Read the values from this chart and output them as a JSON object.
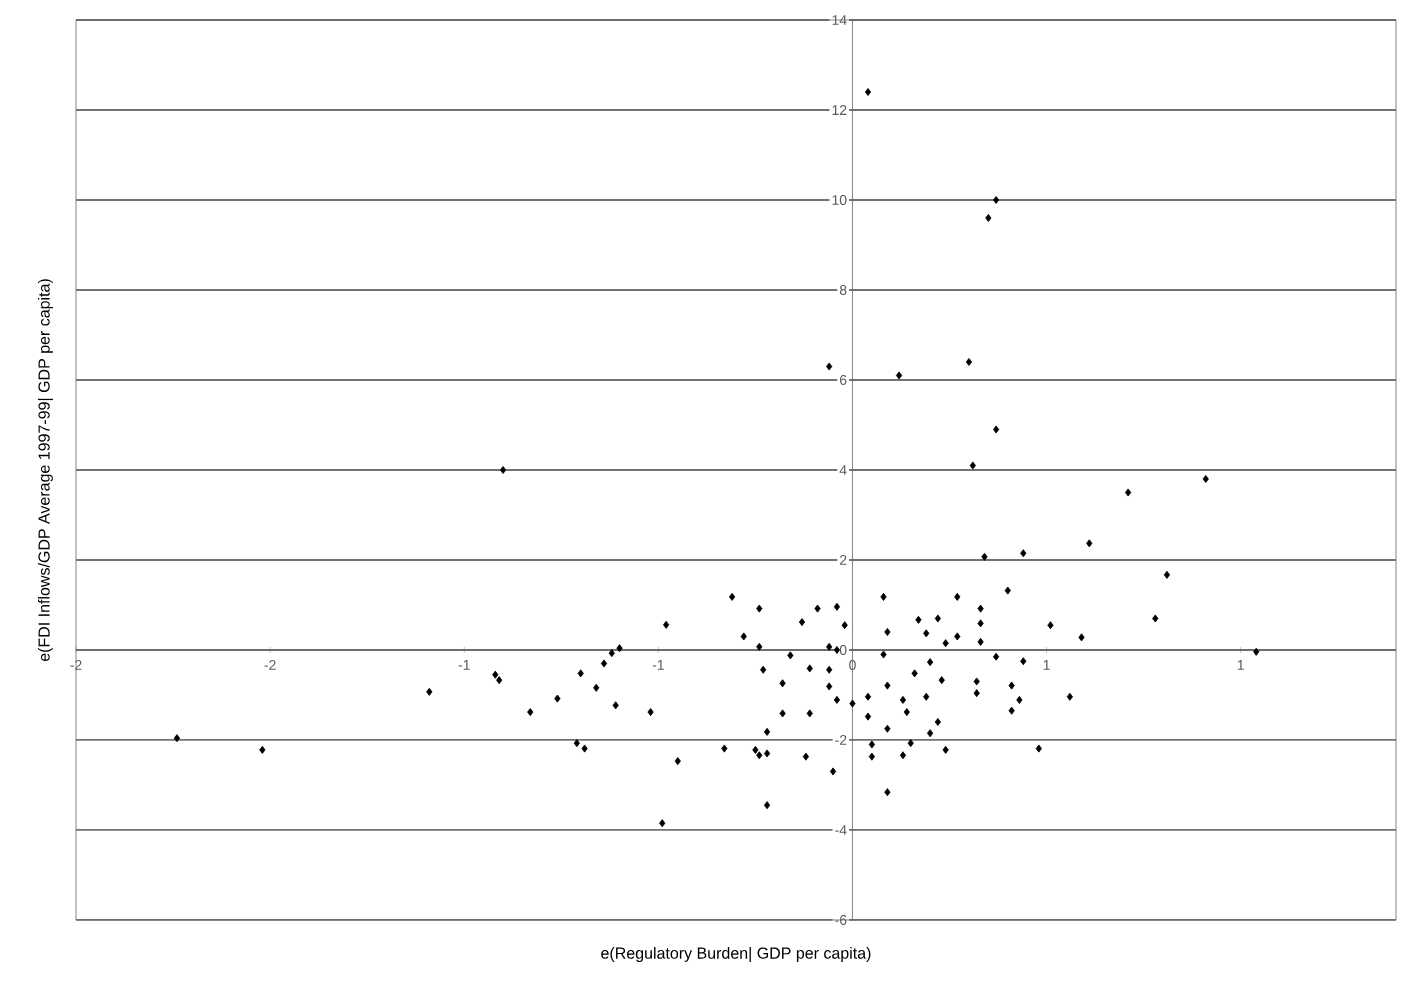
{
  "chart_data": {
    "type": "scatter",
    "xlabel": "e(Regulatory Burden| GDP per capita)",
    "ylabel": "e(FDI Inflows/GDP Average 1997-99| GDP per capita)",
    "xlim": [
      -2,
      1.4
    ],
    "xticks": [
      -2,
      {
        "value": -1.5,
        "label": "-2"
      },
      -1,
      {
        "value": -0.5,
        "label": "-1"
      },
      0,
      {
        "value": 0.5,
        "label": "1"
      },
      1
    ],
    "ylim": [
      -6,
      14
    ],
    "yticks": [
      -6,
      -4,
      -2,
      0,
      2,
      4,
      6,
      8,
      10,
      12,
      14
    ],
    "grid": "y",
    "marker": "diamond",
    "color": "#000000",
    "x": [
      0.04,
      0.37,
      0.35,
      -0.06,
      0.12,
      0.3,
      0.37,
      0.31,
      0.71,
      0.91,
      -0.9,
      0.34,
      0.44,
      0.61,
      0.81,
      0.78,
      1.04,
      0.59,
      0.51,
      0.4,
      0.27,
      0.33,
      0.33,
      0.08,
      0.09,
      0.17,
      0.22,
      0.19,
      0.27,
      0.24,
      0.33,
      0.37,
      0.44,
      0.2,
      0.16,
      0.23,
      0.32,
      0.32,
      0.41,
      0.43,
      0.56,
      0.41,
      0.48,
      0.24,
      0.2,
      0.22,
      0.13,
      0.14,
      0.19,
      0.09,
      0.05,
      0.05,
      0.13,
      0.15,
      0.09,
      0.04,
      0.04,
      0.0,
      -0.04,
      -0.06,
      -0.06,
      -0.06,
      -0.04,
      -0.02,
      -0.04,
      -0.09,
      -0.13,
      -0.16,
      -0.11,
      -0.18,
      -0.18,
      -0.11,
      -0.22,
      -0.22,
      -0.12,
      -0.05,
      -0.22,
      0.09,
      0.08,
      -1.74,
      -1.52,
      -1.09,
      -0.92,
      -0.91,
      -0.83,
      -0.76,
      -0.7,
      -0.66,
      -0.64,
      -0.62,
      -0.6,
      -0.61,
      -0.71,
      -0.69,
      -0.52,
      -0.48,
      -0.45,
      -0.49,
      -0.33,
      -0.31,
      -0.24,
      -0.28,
      -0.24,
      -0.23,
      -0.25,
      -0.24
    ],
    "values": [
      12.4,
      10.0,
      9.6,
      6.3,
      6.1,
      6.4,
      4.9,
      4.1,
      3.5,
      3.8,
      4.0,
      2.07,
      2.15,
      2.37,
      1.67,
      0.7,
      -0.04,
      0.28,
      0.55,
      1.32,
      1.18,
      0.92,
      0.59,
      1.18,
      0.4,
      0.67,
      0.7,
      0.37,
      0.3,
      0.15,
      0.18,
      -0.15,
      -0.25,
      -0.27,
      -0.52,
      -0.67,
      -0.7,
      -0.96,
      -0.79,
      -1.11,
      -1.04,
      -1.35,
      -2.19,
      -2.22,
      -1.85,
      -1.6,
      -1.11,
      -1.38,
      -1.04,
      -1.75,
      -2.1,
      -2.37,
      -2.34,
      -2.07,
      -3.16,
      -1.48,
      -1.04,
      -1.19,
      -1.11,
      -0.81,
      -0.44,
      0.07,
      0.0,
      0.55,
      0.96,
      0.92,
      0.62,
      -0.12,
      -0.41,
      -0.74,
      -1.41,
      -1.41,
      -1.82,
      -2.3,
      -2.37,
      -2.7,
      -3.45,
      -0.79,
      -0.1,
      -1.96,
      -2.22,
      -0.93,
      -0.55,
      -0.67,
      -1.38,
      -1.08,
      -0.52,
      -0.84,
      -0.3,
      -0.07,
      0.04,
      -1.23,
      -2.07,
      -2.19,
      -1.38,
      0.56,
      -2.47,
      -3.85,
      -2.19,
      1.18,
      0.92,
      0.3,
      0.07,
      -0.44,
      -2.22,
      -2.34
    ]
  }
}
